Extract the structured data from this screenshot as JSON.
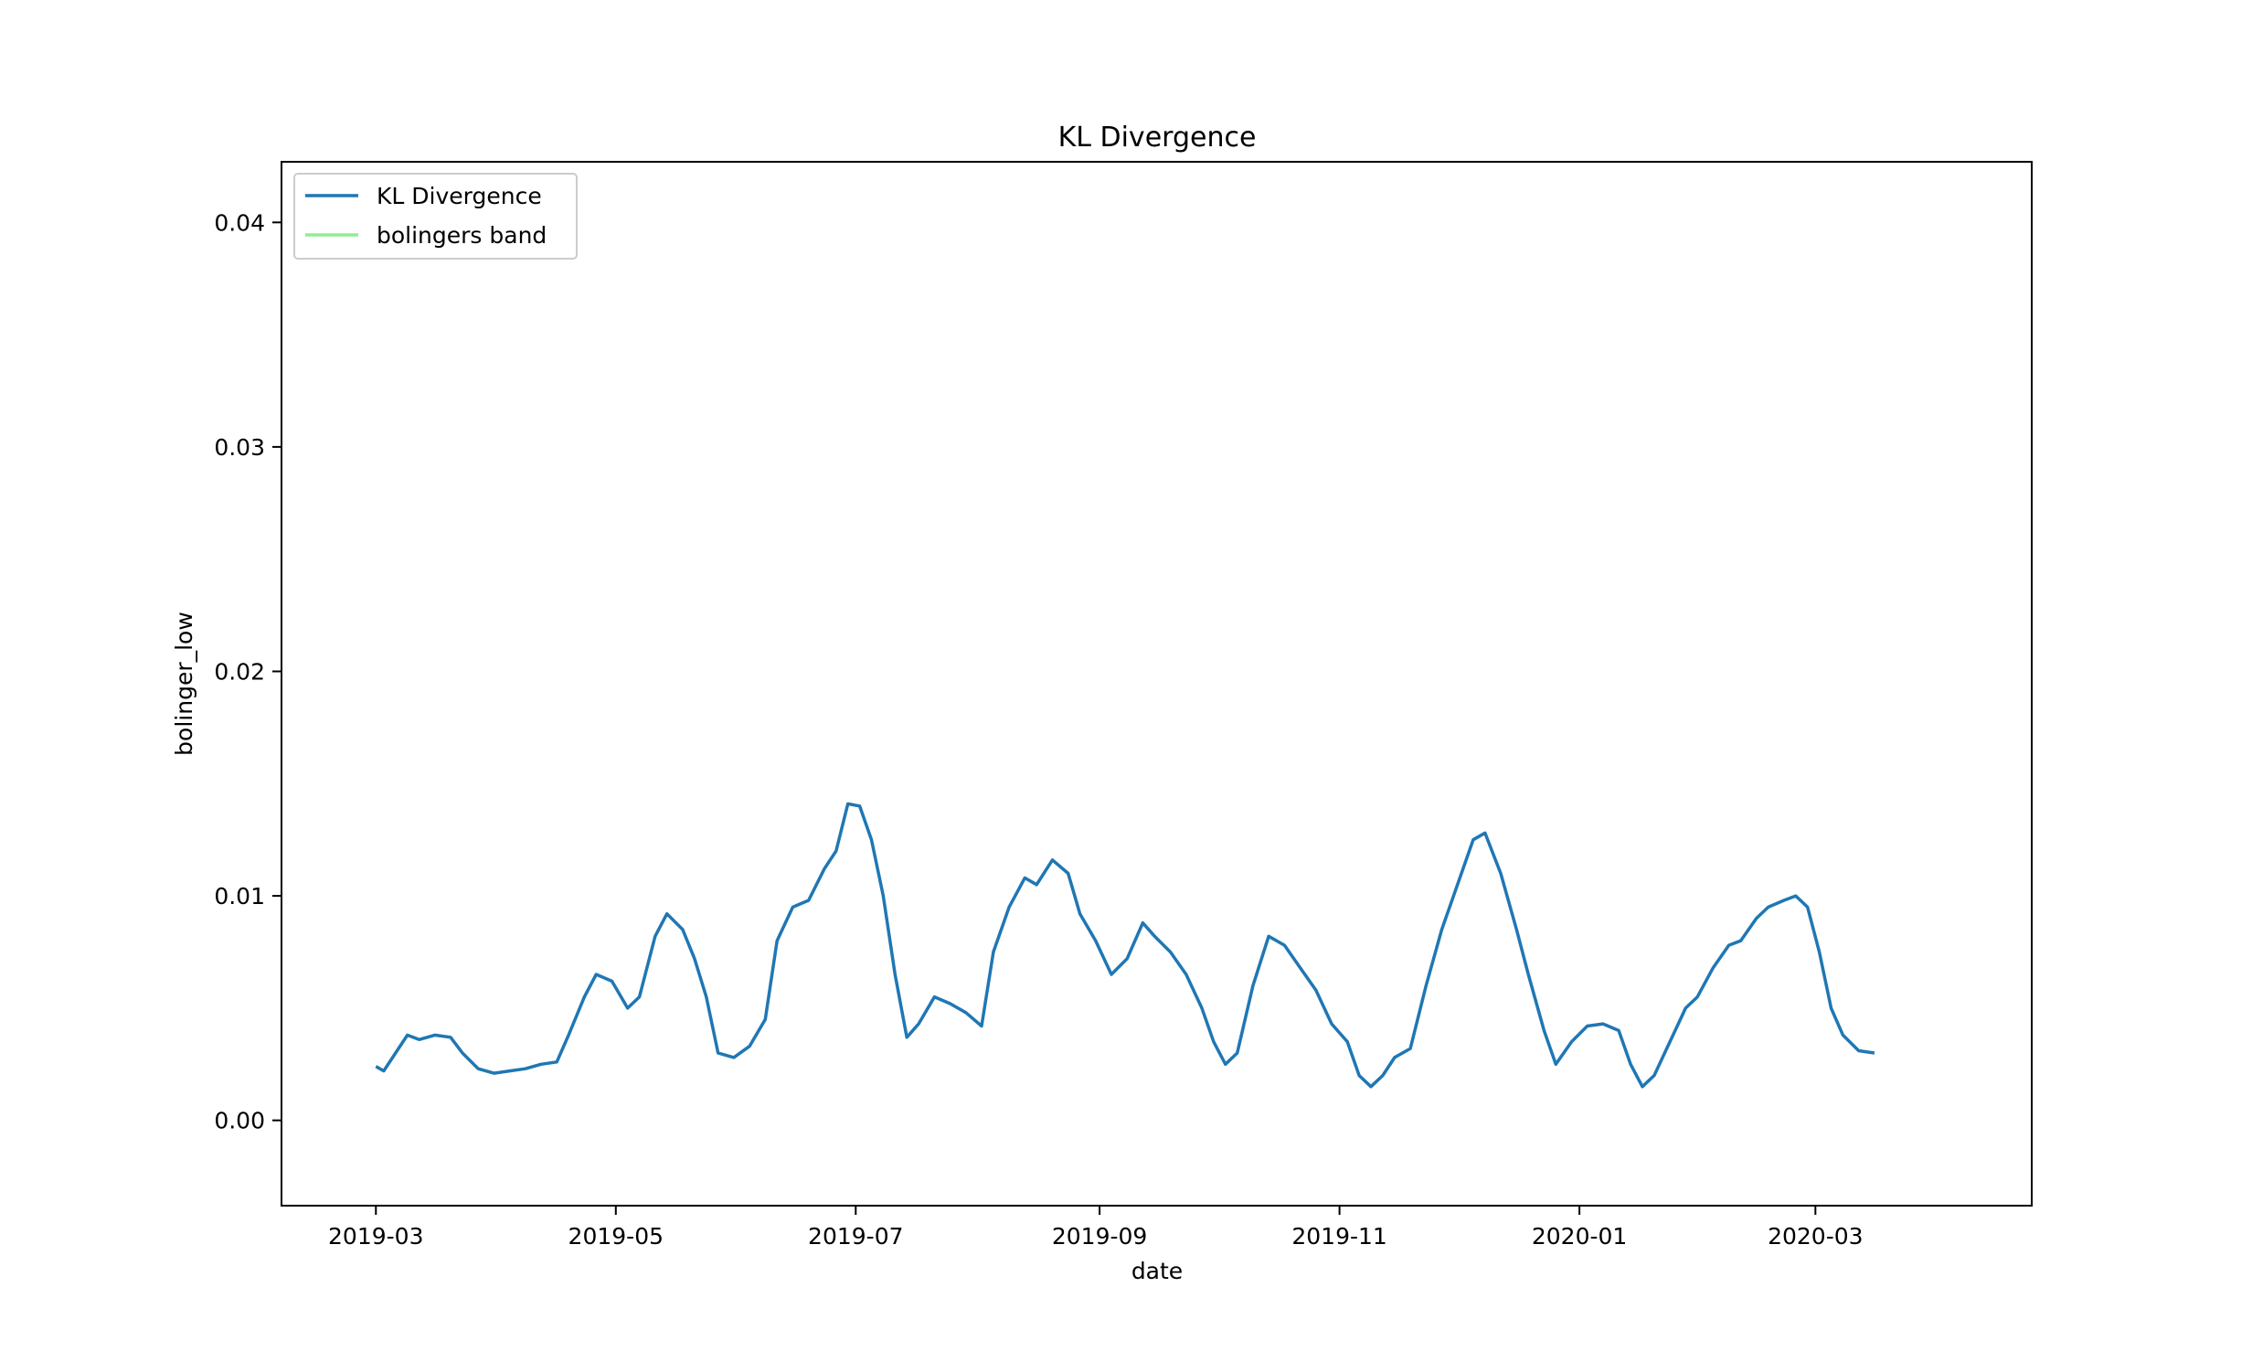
{
  "chart_data": {
    "type": "line",
    "title": "KL Divergence",
    "xlabel": "date",
    "ylabel": "bolinger_low",
    "xlim": [
      "2019-02-05",
      "2020-04-25"
    ],
    "ylim": [
      -0.0038,
      0.0427
    ],
    "x_ticks": [
      "2019-03",
      "2019-05",
      "2019-07",
      "2019-09",
      "2019-11",
      "2020-01",
      "2020-03"
    ],
    "y_ticks": [
      "0.00",
      "0.01",
      "0.02",
      "0.03",
      "0.04"
    ],
    "legend": {
      "position": "upper-left",
      "entries": [
        "KL Divergence",
        "bolingers band"
      ]
    },
    "colors": {
      "kl": "#1f77b4",
      "band": "#90ee90"
    },
    "series": [
      {
        "name": "KL Divergence",
        "color": "#1f77b4",
        "points": [
          [
            "2019-03-01",
            0.0024
          ],
          [
            "2019-03-03",
            0.0022
          ],
          [
            "2019-03-06",
            0.003
          ],
          [
            "2019-03-09",
            0.0038
          ],
          [
            "2019-03-12",
            0.0036
          ],
          [
            "2019-03-16",
            0.0038
          ],
          [
            "2019-03-20",
            0.0037
          ],
          [
            "2019-03-23",
            0.003
          ],
          [
            "2019-03-27",
            0.0023
          ],
          [
            "2019-03-31",
            0.0021
          ],
          [
            "2019-04-04",
            0.0022
          ],
          [
            "2019-04-08",
            0.0023
          ],
          [
            "2019-04-12",
            0.0025
          ],
          [
            "2019-04-16",
            0.0026
          ],
          [
            "2019-04-19",
            0.0038
          ],
          [
            "2019-04-23",
            0.0055
          ],
          [
            "2019-04-26",
            0.0065
          ],
          [
            "2019-04-30",
            0.0062
          ],
          [
            "2019-05-04",
            0.005
          ],
          [
            "2019-05-07",
            0.0055
          ],
          [
            "2019-05-11",
            0.0082
          ],
          [
            "2019-05-14",
            0.0092
          ],
          [
            "2019-05-18",
            0.0085
          ],
          [
            "2019-05-21",
            0.0072
          ],
          [
            "2019-05-24",
            0.0055
          ],
          [
            "2019-05-27",
            0.003
          ],
          [
            "2019-05-31",
            0.0028
          ],
          [
            "2019-06-04",
            0.0033
          ],
          [
            "2019-06-08",
            0.0045
          ],
          [
            "2019-06-11",
            0.008
          ],
          [
            "2019-06-15",
            0.0095
          ],
          [
            "2019-06-19",
            0.0098
          ],
          [
            "2019-06-23",
            0.0112
          ],
          [
            "2019-06-26",
            0.012
          ],
          [
            "2019-06-29",
            0.0141
          ],
          [
            "2019-07-02",
            0.014
          ],
          [
            "2019-07-05",
            0.0125
          ],
          [
            "2019-07-08",
            0.01
          ],
          [
            "2019-07-11",
            0.0065
          ],
          [
            "2019-07-14",
            0.0037
          ],
          [
            "2019-07-17",
            0.0043
          ],
          [
            "2019-07-21",
            0.0055
          ],
          [
            "2019-07-25",
            0.0052
          ],
          [
            "2019-07-29",
            0.0048
          ],
          [
            "2019-08-02",
            0.0042
          ],
          [
            "2019-08-05",
            0.0075
          ],
          [
            "2019-08-09",
            0.0095
          ],
          [
            "2019-08-13",
            0.0108
          ],
          [
            "2019-08-16",
            0.0105
          ],
          [
            "2019-08-20",
            0.0116
          ],
          [
            "2019-08-24",
            0.011
          ],
          [
            "2019-08-27",
            0.0092
          ],
          [
            "2019-08-31",
            0.008
          ],
          [
            "2019-09-04",
            0.0065
          ],
          [
            "2019-09-08",
            0.0072
          ],
          [
            "2019-09-12",
            0.0088
          ],
          [
            "2019-09-15",
            0.0082
          ],
          [
            "2019-09-19",
            0.0075
          ],
          [
            "2019-09-23",
            0.0065
          ],
          [
            "2019-09-27",
            0.005
          ],
          [
            "2019-09-30",
            0.0035
          ],
          [
            "2019-10-03",
            0.0025
          ],
          [
            "2019-10-06",
            0.003
          ],
          [
            "2019-10-10",
            0.006
          ],
          [
            "2019-10-14",
            0.0082
          ],
          [
            "2019-10-18",
            0.0078
          ],
          [
            "2019-10-22",
            0.0068
          ],
          [
            "2019-10-26",
            0.0058
          ],
          [
            "2019-10-30",
            0.0043
          ],
          [
            "2019-11-03",
            0.0035
          ],
          [
            "2019-11-06",
            0.002
          ],
          [
            "2019-11-09",
            0.0015
          ],
          [
            "2019-11-12",
            0.002
          ],
          [
            "2019-11-15",
            0.0028
          ],
          [
            "2019-11-19",
            0.0032
          ],
          [
            "2019-11-23",
            0.006
          ],
          [
            "2019-11-27",
            0.0085
          ],
          [
            "2019-12-01",
            0.0105
          ],
          [
            "2019-12-05",
            0.0125
          ],
          [
            "2019-12-08",
            0.0128
          ],
          [
            "2019-12-12",
            0.011
          ],
          [
            "2019-12-16",
            0.0085
          ],
          [
            "2019-12-19",
            0.0065
          ],
          [
            "2019-12-23",
            0.004
          ],
          [
            "2019-12-26",
            0.0025
          ],
          [
            "2019-12-30",
            0.0035
          ],
          [
            "2020-01-03",
            0.0042
          ],
          [
            "2020-01-07",
            0.0043
          ],
          [
            "2020-01-11",
            0.004
          ],
          [
            "2020-01-14",
            0.0025
          ],
          [
            "2020-01-17",
            0.0015
          ],
          [
            "2020-01-20",
            0.002
          ],
          [
            "2020-01-24",
            0.0035
          ],
          [
            "2020-01-28",
            0.005
          ],
          [
            "2020-01-31",
            0.0055
          ],
          [
            "2020-02-04",
            0.0068
          ],
          [
            "2020-02-08",
            0.0078
          ],
          [
            "2020-02-11",
            0.008
          ],
          [
            "2020-02-15",
            0.009
          ],
          [
            "2020-02-18",
            0.0095
          ],
          [
            "2020-02-22",
            0.0098
          ],
          [
            "2020-02-25",
            0.01
          ],
          [
            "2020-02-28",
            0.0095
          ],
          [
            "2020-03-02",
            0.0075
          ],
          [
            "2020-03-05",
            0.005
          ],
          [
            "2020-03-08",
            0.0038
          ],
          [
            "2020-03-12",
            0.0031
          ],
          [
            "2020-03-16",
            0.003
          ]
        ]
      }
    ]
  }
}
